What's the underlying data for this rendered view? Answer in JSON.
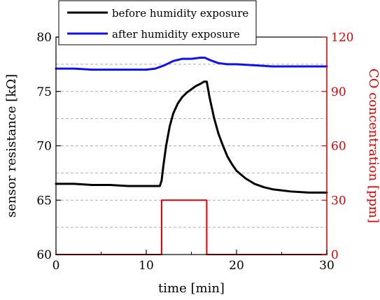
{
  "chart_data": {
    "type": "line",
    "xlabel": "time [min]",
    "ylabel": "sensor resistance [kΩ]",
    "ylabel_right": "CO concentration [ppm]",
    "xlim": [
      0,
      30
    ],
    "ylim": [
      60,
      80
    ],
    "ylim_right": [
      0,
      120
    ],
    "x_ticks": [
      "0",
      "10",
      "20",
      "30"
    ],
    "y_ticks": [
      "60",
      "65",
      "70",
      "75",
      "80"
    ],
    "y_ticks_right": [
      "0",
      "30",
      "60",
      "90",
      "120"
    ],
    "grid": "horizontal dashed",
    "legend_position": "top-left",
    "colors": {
      "before": "#000000",
      "after": "#1010ee",
      "co": "#e00000"
    },
    "series": [
      {
        "name": "before humidity exposure",
        "axis": "left",
        "x": [
          0,
          2,
          4,
          6,
          8,
          10,
          11.5,
          11.7,
          11.9,
          12.2,
          12.6,
          13.0,
          13.5,
          14.0,
          14.5,
          15.0,
          15.5,
          16.0,
          16.4,
          16.7,
          17.0,
          17.5,
          18.0,
          18.5,
          19.0,
          19.5,
          20.0,
          21.0,
          22.0,
          23.0,
          24.0,
          25.0,
          26.0,
          28.0,
          30.0
        ],
        "y": [
          66.5,
          66.5,
          66.4,
          66.4,
          66.3,
          66.3,
          66.3,
          66.8,
          68.2,
          70.0,
          71.8,
          73.0,
          73.9,
          74.5,
          74.9,
          75.2,
          75.5,
          75.7,
          75.9,
          75.9,
          74.5,
          72.6,
          71.1,
          70.0,
          69.0,
          68.3,
          67.7,
          67.0,
          66.5,
          66.2,
          66.0,
          65.9,
          65.8,
          65.7,
          65.7
        ]
      },
      {
        "name": "after humidity exposure",
        "axis": "left",
        "x": [
          0,
          2,
          4,
          6,
          8,
          10,
          11,
          12,
          13,
          14,
          15,
          16,
          16.5,
          17,
          18,
          19,
          20,
          22,
          24,
          26,
          28,
          30
        ],
        "y": [
          77.1,
          77.1,
          77.0,
          77.0,
          77.0,
          77.0,
          77.1,
          77.4,
          77.8,
          78.0,
          78.0,
          78.1,
          78.1,
          77.9,
          77.6,
          77.5,
          77.5,
          77.4,
          77.3,
          77.3,
          77.3,
          77.3
        ]
      },
      {
        "name": "CO concentration",
        "axis": "right",
        "x": [
          0,
          11.7,
          11.7,
          16.7,
          16.7,
          30
        ],
        "y": [
          0,
          0,
          30,
          30,
          0,
          0
        ]
      }
    ]
  }
}
